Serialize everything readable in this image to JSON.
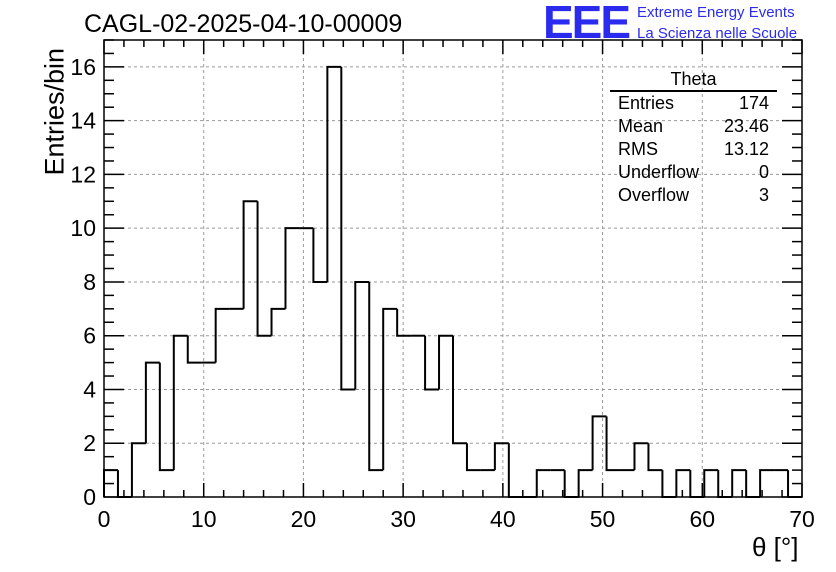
{
  "header": {
    "run_title": "CAGL-02-2025-04-10-00009",
    "logo_text": "EEE",
    "logo_line1": "Extreme Energy Events",
    "logo_line2": "La Scienza nelle Scuole"
  },
  "stats": {
    "title": "Theta",
    "rows": [
      {
        "label": "Entries",
        "value": "174"
      },
      {
        "label": "Mean",
        "value": "23.46"
      },
      {
        "label": "RMS",
        "value": "13.12"
      },
      {
        "label": "Underflow",
        "value": "0"
      },
      {
        "label": "Overflow",
        "value": "3"
      }
    ]
  },
  "colors": {
    "logo": "#2b2bf0",
    "line": "#000000",
    "grid": "#9a9a9a"
  },
  "chart_data": {
    "type": "histogram",
    "xlabel": "θ [°]",
    "ylabel": "Entries/bin",
    "xlim": [
      0,
      70
    ],
    "ylim": [
      0,
      17
    ],
    "xticks": [
      0,
      10,
      20,
      30,
      40,
      50,
      60,
      70
    ],
    "yticks": [
      0,
      2,
      4,
      6,
      8,
      10,
      12,
      14,
      16
    ],
    "grid": true,
    "bin_width": 1.4,
    "values": [
      1,
      0,
      2,
      5,
      1,
      6,
      5,
      5,
      7,
      7,
      11,
      6,
      7,
      10,
      10,
      8,
      16,
      4,
      8,
      1,
      7,
      6,
      6,
      4,
      6,
      2,
      1,
      1,
      2,
      0,
      0,
      1,
      1,
      0,
      1,
      3,
      1,
      1,
      2,
      1,
      0,
      1,
      0,
      1,
      0,
      1,
      0,
      1,
      1,
      0
    ]
  }
}
